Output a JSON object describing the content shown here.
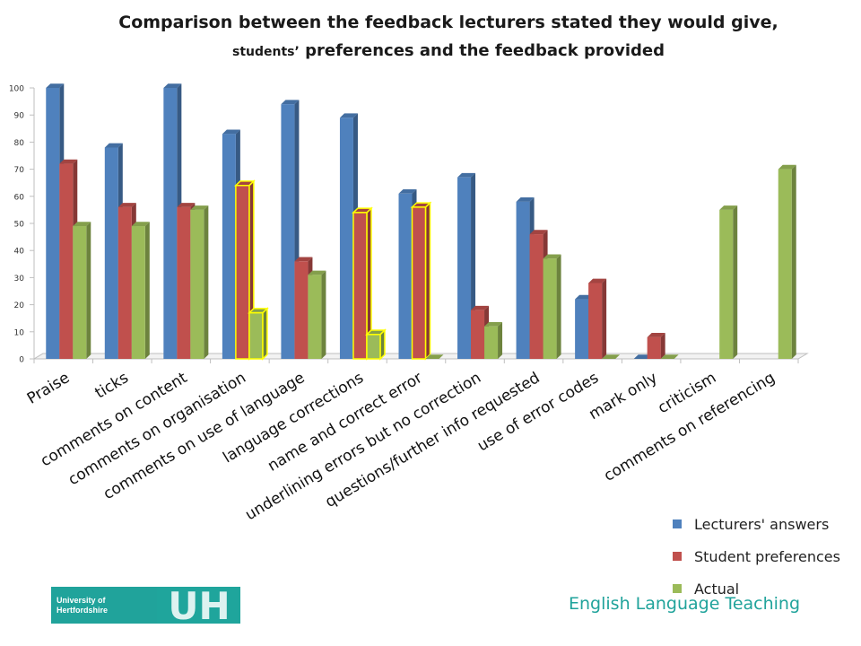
{
  "chart_data": {
    "type": "bar",
    "title_line1": "Comparison between the feedback lecturers stated they would give,",
    "title_line2_small": "students’",
    "title_line2_rest": " preferences and the feedback provided",
    "categories": [
      "Praise",
      "ticks",
      "comments on content",
      "comments on organisation",
      "comments on use of language",
      "language corrections",
      "name and correct error",
      "underlining errors but no correction",
      "questions/further info requested",
      "use of error codes",
      "mark only",
      "criticism",
      "comments on referencing"
    ],
    "series": [
      {
        "name": "Lecturers' answers",
        "color": "#4f81bd",
        "values": [
          100,
          78,
          100,
          83,
          94,
          89,
          61,
          67,
          58,
          22,
          0,
          null,
          null
        ]
      },
      {
        "name": "Student preferences",
        "color": "#c0504d",
        "values": [
          72,
          56,
          56,
          64,
          36,
          54,
          56,
          18,
          46,
          28,
          8,
          null,
          null
        ]
      },
      {
        "name": "Actual",
        "color": "#9bbb59",
        "values": [
          49,
          49,
          55,
          17,
          31,
          9,
          0,
          12,
          37,
          0,
          0,
          55,
          70
        ]
      }
    ],
    "highlighted_bars": [
      {
        "category": "comments on organisation",
        "series": "Student preferences"
      },
      {
        "category": "comments on organisation",
        "series": "Actual"
      },
      {
        "category": "language corrections",
        "series": "Student preferences"
      },
      {
        "category": "language corrections",
        "series": "Actual"
      },
      {
        "category": "name and correct error",
        "series": "Student preferences"
      }
    ],
    "highlight_color": "#ffff00",
    "ylim": [
      0,
      100
    ],
    "yticks": [
      0,
      10,
      20,
      30,
      40,
      50,
      60,
      70,
      80,
      90,
      100
    ],
    "legend_position": "bottom-right",
    "grid": false
  },
  "logo": {
    "line1": "University of",
    "line2": "Hertfordshire",
    "mark": "UH"
  },
  "footer_text": "English Language Teaching"
}
